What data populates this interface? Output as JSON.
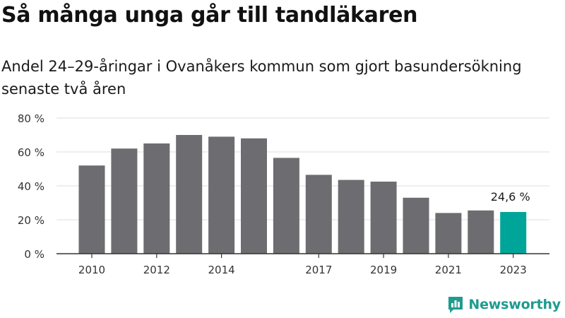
{
  "title": "Så många unga går till tandläkaren",
  "subtitle": "Andel 24–29-åringar i Ovanåkers kommun som gjort basundersökning senaste två åren",
  "brand": "Newsworthy",
  "colors": {
    "bar": "#6d6d71",
    "highlight": "#00a59a",
    "grid": "#dcdcdc",
    "axis": "#333333"
  },
  "chart_data": {
    "type": "bar",
    "categories": [
      "2010",
      "2011",
      "2012",
      "2013",
      "2014",
      "2015",
      "2016",
      "2017",
      "2018",
      "2019",
      "2020",
      "2021",
      "2022",
      "2023"
    ],
    "values": [
      52,
      62,
      65,
      70,
      69,
      68,
      56.5,
      46.5,
      43.5,
      42.5,
      33,
      24,
      25.5,
      24.6
    ],
    "tick_labels_x": [
      "2010",
      "2012",
      "2014",
      "2017",
      "2019",
      "2021",
      "2023"
    ],
    "y_ticks": [
      0,
      20,
      40,
      60,
      80
    ],
    "y_tick_labels": [
      "0 %",
      "20 %",
      "40 %",
      "60 %",
      "80 %"
    ],
    "ylim": [
      0,
      80
    ],
    "highlight_index": 13,
    "annotation": "24,6 %",
    "grid": true
  }
}
